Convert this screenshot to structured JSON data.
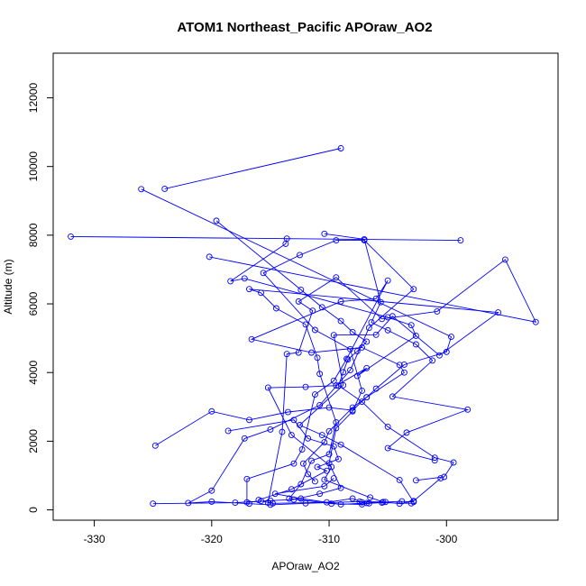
{
  "chart_data": {
    "type": "line",
    "title": "ATOM1 Northeast_Pacific APOraw_AO2",
    "xlabel": "APOraw_AO2",
    "ylabel": "Altitude (m)",
    "xlim": [
      -333.5,
      -290.5
    ],
    "ylim": [
      -300,
      13300
    ],
    "xticks": [
      -330,
      -320,
      -310,
      -300
    ],
    "yticks": [
      0,
      2000,
      4000,
      6000,
      8000,
      10000,
      12000
    ],
    "xtick_labels": [
      "-330",
      "-320",
      "-310",
      "-300"
    ],
    "ytick_labels": [
      "0",
      "2000",
      "4000",
      "6000",
      "8000",
      "10000",
      "12000"
    ],
    "marker": "open-circle",
    "color": "#0000ff",
    "series": [
      {
        "points": [
          {
            "x": -324.8,
            "y": 1870
          },
          {
            "x": -320.0,
            "y": 2870
          },
          {
            "x": -316.8,
            "y": 2620
          },
          {
            "x": -313.5,
            "y": 2850
          },
          {
            "x": -310.0,
            "y": 2980
          },
          {
            "x": -308.0,
            "y": 2900
          },
          {
            "x": -306.8,
            "y": 3280
          },
          {
            "x": -303.6,
            "y": 4000
          },
          {
            "x": -304.0,
            "y": 4220
          },
          {
            "x": -307.2,
            "y": 4730
          },
          {
            "x": -311.5,
            "y": 4580
          },
          {
            "x": -316.6,
            "y": 4970
          },
          {
            "x": -309.0,
            "y": 6070
          },
          {
            "x": -306.0,
            "y": 6150
          },
          {
            "x": -305.0,
            "y": 6680
          },
          {
            "x": -308.5,
            "y": 4400
          },
          {
            "x": -309.6,
            "y": 3760
          },
          {
            "x": -311.2,
            "y": 3360
          },
          {
            "x": -312.3,
            "y": 1760
          },
          {
            "x": -313.0,
            "y": 1350
          },
          {
            "x": -317.0,
            "y": 900
          },
          {
            "x": -317.0,
            "y": 220
          },
          {
            "x": -315.8,
            "y": 260
          },
          {
            "x": -314.8,
            "y": 190
          },
          {
            "x": -310.2,
            "y": 220
          },
          {
            "x": -308.0,
            "y": 330
          },
          {
            "x": -307.2,
            "y": 220
          },
          {
            "x": -306.8,
            "y": 200
          },
          {
            "x": -303.8,
            "y": 250
          },
          {
            "x": -302.8,
            "y": 230
          },
          {
            "x": -304.0,
            "y": 870
          },
          {
            "x": -309.0,
            "y": 1900
          },
          {
            "x": -310.6,
            "y": 2180
          },
          {
            "x": -312.5,
            "y": 2470
          },
          {
            "x": -308.8,
            "y": 3630
          },
          {
            "x": -309.6,
            "y": 5090
          },
          {
            "x": -306.0,
            "y": 5100
          },
          {
            "x": -304.6,
            "y": 5640
          },
          {
            "x": -300.6,
            "y": 4500
          },
          {
            "x": -295.6,
            "y": 5750
          },
          {
            "x": -316.8,
            "y": 6430
          },
          {
            "x": -315.8,
            "y": 6320
          },
          {
            "x": -314.5,
            "y": 5870
          },
          {
            "x": -312.0,
            "y": 5400
          },
          {
            "x": -311.0,
            "y": 4430
          },
          {
            "x": -310.8,
            "y": 3960
          },
          {
            "x": -309.4,
            "y": 2550
          },
          {
            "x": -310.0,
            "y": 1620
          },
          {
            "x": -311.5,
            "y": 1430
          },
          {
            "x": -312.4,
            "y": 750
          },
          {
            "x": -313.4,
            "y": 330
          },
          {
            "x": -309.8,
            "y": 180
          },
          {
            "x": -307.2,
            "y": 160
          },
          {
            "x": -306.6,
            "y": 190
          },
          {
            "x": -305.5,
            "y": 210
          },
          {
            "x": -303.0,
            "y": 190
          }
        ]
      },
      {
        "points": [
          {
            "x": -325.0,
            "y": 180
          },
          {
            "x": -318.0,
            "y": 210
          },
          {
            "x": -315.0,
            "y": 270
          },
          {
            "x": -313.0,
            "y": 300
          },
          {
            "x": -310.8,
            "y": 470
          },
          {
            "x": -309.0,
            "y": 640
          },
          {
            "x": -310.0,
            "y": 1360
          },
          {
            "x": -309.4,
            "y": 2380
          },
          {
            "x": -308.0,
            "y": 2870
          },
          {
            "x": -307.2,
            "y": 3470
          },
          {
            "x": -308.2,
            "y": 4680
          },
          {
            "x": -311.2,
            "y": 5240
          },
          {
            "x": -315.6,
            "y": 6900
          },
          {
            "x": -312.5,
            "y": 7420
          },
          {
            "x": -309.4,
            "y": 7850
          },
          {
            "x": -307.0,
            "y": 7850
          },
          {
            "x": -302.8,
            "y": 6430
          },
          {
            "x": -306.6,
            "y": 5300
          },
          {
            "x": -308.2,
            "y": 4070
          },
          {
            "x": -310.8,
            "y": 3050
          },
          {
            "x": -315.0,
            "y": 2340
          },
          {
            "x": -317.2,
            "y": 2080
          },
          {
            "x": -320.0,
            "y": 560
          },
          {
            "x": -322.0,
            "y": 200
          },
          {
            "x": -320.0,
            "y": 240
          },
          {
            "x": -316.8,
            "y": 180
          },
          {
            "x": -315.0,
            "y": 150
          },
          {
            "x": -312.0,
            "y": 190
          },
          {
            "x": -307.4,
            "y": 240
          },
          {
            "x": -305.2,
            "y": 230
          },
          {
            "x": -304.0,
            "y": 180
          },
          {
            "x": -302.8,
            "y": 260
          },
          {
            "x": -300.5,
            "y": 920
          }
        ]
      },
      {
        "points": [
          {
            "x": -332.0,
            "y": 7960
          },
          {
            "x": -298.8,
            "y": 7850
          },
          {
            "x": -313.6,
            "y": 7900
          },
          {
            "x": -313.7,
            "y": 7750
          },
          {
            "x": -318.4,
            "y": 6660
          },
          {
            "x": -317.2,
            "y": 6740
          },
          {
            "x": -305.0,
            "y": 5610
          },
          {
            "x": -303.0,
            "y": 5380
          },
          {
            "x": -302.6,
            "y": 5070
          },
          {
            "x": -307.6,
            "y": 3900
          },
          {
            "x": -306.8,
            "y": 4130
          },
          {
            "x": -309.4,
            "y": 3620
          },
          {
            "x": -312.0,
            "y": 3580
          },
          {
            "x": -315.2,
            "y": 3560
          },
          {
            "x": -313.2,
            "y": 2180
          },
          {
            "x": -309.8,
            "y": 1250
          },
          {
            "x": -310.4,
            "y": 880
          },
          {
            "x": -306.5,
            "y": 360
          },
          {
            "x": -305.4,
            "y": 230
          },
          {
            "x": -309.0,
            "y": 160
          },
          {
            "x": -312.4,
            "y": 330
          },
          {
            "x": -314.6,
            "y": 470
          },
          {
            "x": -310.4,
            "y": 690
          },
          {
            "x": -309.6,
            "y": 920
          }
        ]
      },
      {
        "points": [
          {
            "x": -326.0,
            "y": 9340
          },
          {
            "x": -299.6,
            "y": 5040
          },
          {
            "x": -300.0,
            "y": 4600
          },
          {
            "x": -303.6,
            "y": 4230
          },
          {
            "x": -306.0,
            "y": 3530
          },
          {
            "x": -306.8,
            "y": 3280
          },
          {
            "x": -308.0,
            "y": 2980
          },
          {
            "x": -310.0,
            "y": 2290
          },
          {
            "x": -310.4,
            "y": 1970
          },
          {
            "x": -312.2,
            "y": 1350
          },
          {
            "x": -311.8,
            "y": 1040
          },
          {
            "x": -311.2,
            "y": 830
          }
        ]
      },
      {
        "points": [
          {
            "x": -324.0,
            "y": 9350
          },
          {
            "x": -309.0,
            "y": 10530
          }
        ]
      },
      {
        "points": [
          {
            "x": -319.6,
            "y": 8420
          },
          {
            "x": -312.4,
            "y": 6410
          },
          {
            "x": -310.6,
            "y": 5900
          },
          {
            "x": -309.0,
            "y": 5500
          },
          {
            "x": -308.0,
            "y": 5180
          },
          {
            "x": -306.8,
            "y": 4900
          },
          {
            "x": -307.6,
            "y": 4620
          },
          {
            "x": -308.4,
            "y": 4380
          },
          {
            "x": -308.8,
            "y": 4010
          },
          {
            "x": -309.2,
            "y": 3620
          },
          {
            "x": -307.2,
            "y": 3150
          },
          {
            "x": -305.0,
            "y": 2420
          },
          {
            "x": -301.0,
            "y": 1520
          },
          {
            "x": -299.4,
            "y": 1380
          },
          {
            "x": -300.2,
            "y": 960
          },
          {
            "x": -302.6,
            "y": 860
          }
        ]
      },
      {
        "points": [
          {
            "x": -310.4,
            "y": 8040
          },
          {
            "x": -307.0,
            "y": 7880
          },
          {
            "x": -305.6,
            "y": 6050
          },
          {
            "x": -306.4,
            "y": 5460
          },
          {
            "x": -305.0,
            "y": 5230
          },
          {
            "x": -302.6,
            "y": 4820
          },
          {
            "x": -301.2,
            "y": 4350
          },
          {
            "x": -304.6,
            "y": 3300
          },
          {
            "x": -298.2,
            "y": 2920
          },
          {
            "x": -303.4,
            "y": 2250
          },
          {
            "x": -305.0,
            "y": 1800
          },
          {
            "x": -301.0,
            "y": 1440
          }
        ]
      },
      {
        "points": [
          {
            "x": -320.2,
            "y": 7370
          },
          {
            "x": -292.4,
            "y": 5470
          },
          {
            "x": -295.0,
            "y": 7290
          },
          {
            "x": -300.8,
            "y": 5780
          },
          {
            "x": -305.5,
            "y": 5560
          },
          {
            "x": -309.4,
            "y": 6770
          },
          {
            "x": -312.6,
            "y": 6070
          },
          {
            "x": -311.4,
            "y": 5800
          },
          {
            "x": -312.6,
            "y": 4580
          },
          {
            "x": -313.6,
            "y": 4540
          },
          {
            "x": -314.0,
            "y": 2270
          },
          {
            "x": -315.2,
            "y": 210
          }
        ]
      },
      {
        "points": [
          {
            "x": -318.6,
            "y": 2300
          },
          {
            "x": -313.0,
            "y": 2620
          },
          {
            "x": -311.8,
            "y": 2080
          },
          {
            "x": -309.6,
            "y": 1850
          },
          {
            "x": -309.2,
            "y": 1480
          },
          {
            "x": -311.0,
            "y": 1250
          },
          {
            "x": -310.2,
            "y": 1140
          },
          {
            "x": -313.2,
            "y": 600
          },
          {
            "x": -316.0,
            "y": 290
          }
        ]
      }
    ]
  }
}
